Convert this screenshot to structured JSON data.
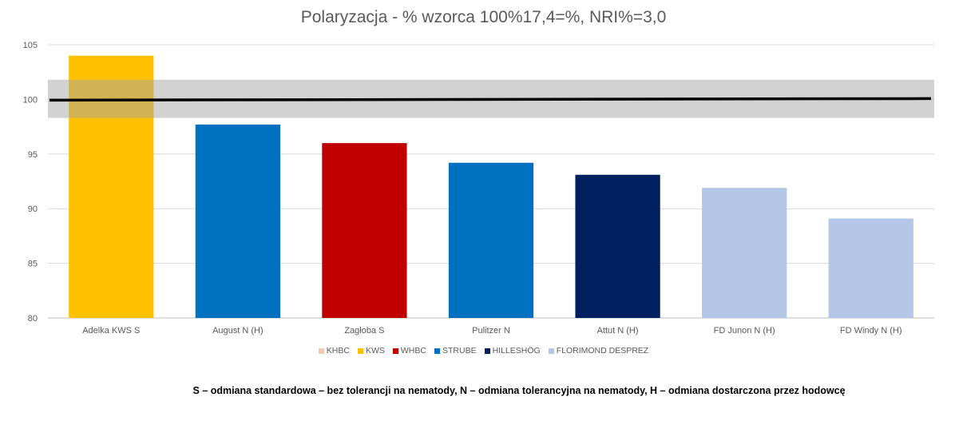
{
  "chart_data": {
    "type": "bar",
    "title": "Polaryzacja - % wzorca 100%17,4=%, NRI%=3,0",
    "categories": [
      "Adelka KWS S",
      "August  N (H)",
      "Zagłoba S",
      "Pulitzer N",
      "Attut  N (H)",
      "FD Junon  N (H)",
      "FD Windy N (H)"
    ],
    "values": [
      104.0,
      97.7,
      96.0,
      94.2,
      93.1,
      91.9,
      89.1
    ],
    "bar_groups": [
      "KWS",
      "STRUBE",
      "WHBC",
      "STRUBE",
      "HILLESHÖG",
      "FLORIMOND DESPREZ",
      "FLORIMOND DESPREZ"
    ],
    "ylim": [
      80,
      105
    ],
    "yticks": [
      80,
      85,
      90,
      95,
      100,
      105
    ],
    "reference_line": {
      "value": 100.0,
      "band": [
        98.3,
        101.8
      ]
    },
    "grid": true,
    "legend": {
      "placement": "bottom",
      "entries": [
        {
          "name": "KHBC",
          "color": "#F4C7AE"
        },
        {
          "name": "KWS",
          "color": "#FFC000"
        },
        {
          "name": "WHBC",
          "color": "#C00000"
        },
        {
          "name": "STRUBE",
          "color": "#0070C0"
        },
        {
          "name": "HILLESHÖG",
          "color": "#002060"
        },
        {
          "name": "FLORIMOND DESPREZ",
          "color": "#B4C7E7"
        }
      ]
    }
  },
  "footnote": "S – odmiana standardowa – bez tolerancji na nematody, N – odmiana tolerancyjna na nematody, H – odmiana dostarczona przez hodowcę"
}
